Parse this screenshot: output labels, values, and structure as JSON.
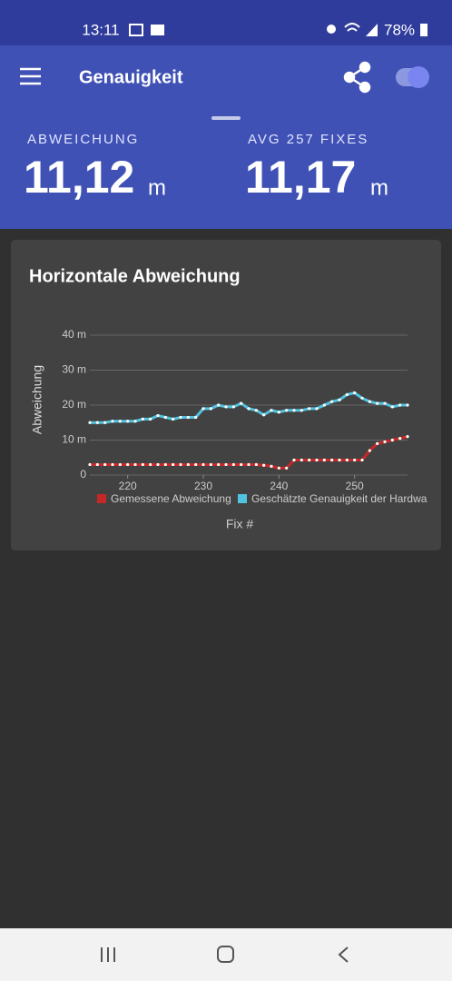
{
  "status_bar": {
    "time": "13:11",
    "battery": "78%"
  },
  "app_bar": {
    "title": "Genauigkeit"
  },
  "stats": [
    {
      "label": "ABWEICHUNG",
      "value": "11,12",
      "unit": "m"
    },
    {
      "label": "AVG 257 FIXES",
      "value": "11,17",
      "unit": "m"
    }
  ],
  "chart_data": {
    "type": "line",
    "title": "Horizontale Abweichung",
    "y_label": "Abweichung",
    "x_label": "Fix #",
    "x": [
      215,
      216,
      217,
      218,
      219,
      220,
      221,
      222,
      223,
      224,
      225,
      226,
      227,
      228,
      229,
      230,
      231,
      232,
      233,
      234,
      235,
      236,
      237,
      238,
      239,
      240,
      241,
      242,
      243,
      244,
      245,
      246,
      247,
      248,
      249,
      250,
      251,
      252,
      253,
      254,
      255,
      256,
      257
    ],
    "series": [
      {
        "name": "Gemessene Abweichung",
        "color": "#c62828",
        "values": [
          3,
          3,
          3,
          3,
          3,
          3,
          3,
          3,
          3,
          3,
          3,
          3,
          3,
          3,
          3,
          3,
          3,
          3,
          3,
          3,
          3,
          3,
          3,
          2.8,
          2.5,
          2,
          2,
          4.3,
          4.3,
          4.3,
          4.3,
          4.3,
          4.3,
          4.3,
          4.3,
          4.3,
          4.3,
          7,
          9,
          9.5,
          10,
          10.5,
          11
        ]
      },
      {
        "name": "Geschätzte Genauigkeit der Hardwa",
        "color": "#4fc3e0",
        "values": [
          15,
          15,
          15,
          15.4,
          15.4,
          15.4,
          15.4,
          16,
          16,
          17,
          16.5,
          16,
          16.5,
          16.5,
          16.5,
          19,
          19,
          20,
          19.5,
          19.5,
          20.5,
          19,
          18.5,
          17.2,
          18.5,
          18,
          18.5,
          18.5,
          18.5,
          19,
          19,
          20,
          21,
          21.5,
          23,
          23.5,
          22,
          21,
          20.5,
          20.5,
          19.5,
          20,
          20
        ]
      }
    ],
    "xlim": [
      215,
      257
    ],
    "ylim": [
      0,
      40
    ],
    "xticks": [
      220,
      230,
      240,
      250
    ],
    "yticks": [
      0,
      {
        "value": 10,
        "label": "10 m"
      },
      {
        "value": 20,
        "label": "20 m"
      },
      {
        "value": 30,
        "label": "30 m"
      },
      {
        "value": 40,
        "label": "40 m"
      }
    ],
    "grid": true
  }
}
